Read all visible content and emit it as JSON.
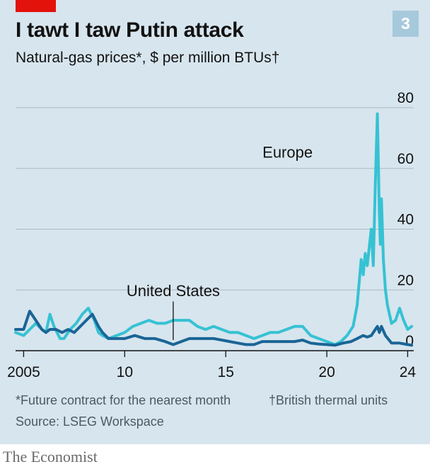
{
  "header": {
    "chart_number": "3",
    "title": "I tawt I taw Putin attack",
    "subtitle": "Natural-gas prices*, $ per million BTUs†"
  },
  "footer": {
    "footnote_1": "*Future contract for the nearest month",
    "footnote_2": "†British thermal units",
    "source": "Source: LSEG Workspace",
    "brand": "The Economist"
  },
  "colors": {
    "background": "#d7e5ee",
    "europe": "#36c2d3",
    "united_states": "#1a6596",
    "brand_red": "#e3120b",
    "grid": "#a9b9c3"
  },
  "chart_data": {
    "type": "line",
    "title": "I tawt I taw Putin attack",
    "ylabel": "Natural-gas prices*, $ per million BTUs†",
    "xlim": [
      2004.6,
      2024.3
    ],
    "ylim": [
      0,
      80
    ],
    "x_ticks": [
      2005,
      2010,
      2015,
      2020,
      2024
    ],
    "x_tick_labels": [
      "2005",
      "10",
      "15",
      "20",
      "24"
    ],
    "y_ticks": [
      0,
      20,
      40,
      60,
      80
    ],
    "y_tick_labels": [
      "0",
      "20",
      "40",
      "60",
      "80"
    ],
    "grid": true,
    "annotations": [
      {
        "text": "Europe",
        "series": "Europe"
      },
      {
        "text": "United States",
        "series": "United States",
        "x": 2012.4
      }
    ],
    "series": [
      {
        "name": "Europe",
        "x": [
          2004.6,
          2005.0,
          2005.3,
          2005.6,
          2005.9,
          2006.1,
          2006.3,
          2006.5,
          2006.8,
          2007.0,
          2007.3,
          2007.6,
          2007.9,
          2008.2,
          2008.5,
          2008.7,
          2008.9,
          2009.2,
          2009.6,
          2010.0,
          2010.4,
          2010.8,
          2011.2,
          2011.6,
          2012.0,
          2012.4,
          2012.8,
          2013.2,
          2013.6,
          2014.0,
          2014.4,
          2014.8,
          2015.2,
          2015.6,
          2016.0,
          2016.4,
          2016.8,
          2017.2,
          2017.6,
          2018.0,
          2018.4,
          2018.8,
          2019.2,
          2019.6,
          2020.0,
          2020.4,
          2020.7,
          2021.0,
          2021.3,
          2021.5,
          2021.7,
          2021.8,
          2021.9,
          2022.0,
          2022.1,
          2022.2,
          2022.3,
          2022.4,
          2022.5,
          2022.6,
          2022.65,
          2022.7,
          2022.8,
          2022.9,
          2023.0,
          2023.2,
          2023.4,
          2023.6,
          2023.8,
          2024.0,
          2024.2
        ],
        "values": [
          6,
          5,
          7,
          9,
          7,
          6,
          12,
          8,
          4,
          4,
          7,
          9,
          12,
          14,
          10,
          6,
          5,
          4,
          5,
          6,
          8,
          9,
          10,
          9,
          9,
          10,
          10,
          10,
          8,
          7,
          8,
          7,
          6,
          6,
          5,
          4,
          5,
          6,
          6,
          7,
          8,
          8,
          5,
          4,
          3,
          2,
          3,
          5,
          8,
          15,
          30,
          25,
          32,
          28,
          34,
          40,
          28,
          55,
          78,
          45,
          35,
          50,
          30,
          20,
          15,
          9,
          10,
          14,
          10,
          7,
          8
        ]
      },
      {
        "name": "United States",
        "x": [
          2004.6,
          2005.0,
          2005.3,
          2005.6,
          2005.9,
          2006.1,
          2006.3,
          2006.6,
          2006.9,
          2007.2,
          2007.5,
          2007.8,
          2008.1,
          2008.4,
          2008.7,
          2008.9,
          2009.2,
          2009.6,
          2010.0,
          2010.5,
          2011.0,
          2011.5,
          2012.0,
          2012.4,
          2012.8,
          2013.2,
          2013.6,
          2014.0,
          2014.4,
          2014.8,
          2015.2,
          2015.6,
          2016.0,
          2016.4,
          2016.8,
          2017.2,
          2017.6,
          2018.0,
          2018.4,
          2018.8,
          2019.2,
          2019.6,
          2020.0,
          2020.4,
          2020.8,
          2021.2,
          2021.5,
          2021.8,
          2022.0,
          2022.2,
          2022.4,
          2022.5,
          2022.6,
          2022.7,
          2022.9,
          2023.2,
          2023.6,
          2024.0,
          2024.2
        ],
        "values": [
          7,
          7,
          13,
          10,
          7,
          6,
          7,
          7,
          6,
          7,
          6,
          8,
          10,
          12,
          8,
          6,
          4,
          4,
          4,
          5,
          4,
          4,
          3,
          2,
          3,
          4,
          4,
          4,
          4,
          3.5,
          3,
          2.5,
          2,
          2,
          3,
          3,
          3,
          3,
          3,
          3.5,
          2.5,
          2.2,
          2,
          1.8,
          2.5,
          3,
          4,
          5,
          4.5,
          5,
          7,
          8,
          6,
          8,
          5,
          2.5,
          2.5,
          2,
          1.8
        ]
      }
    ]
  }
}
